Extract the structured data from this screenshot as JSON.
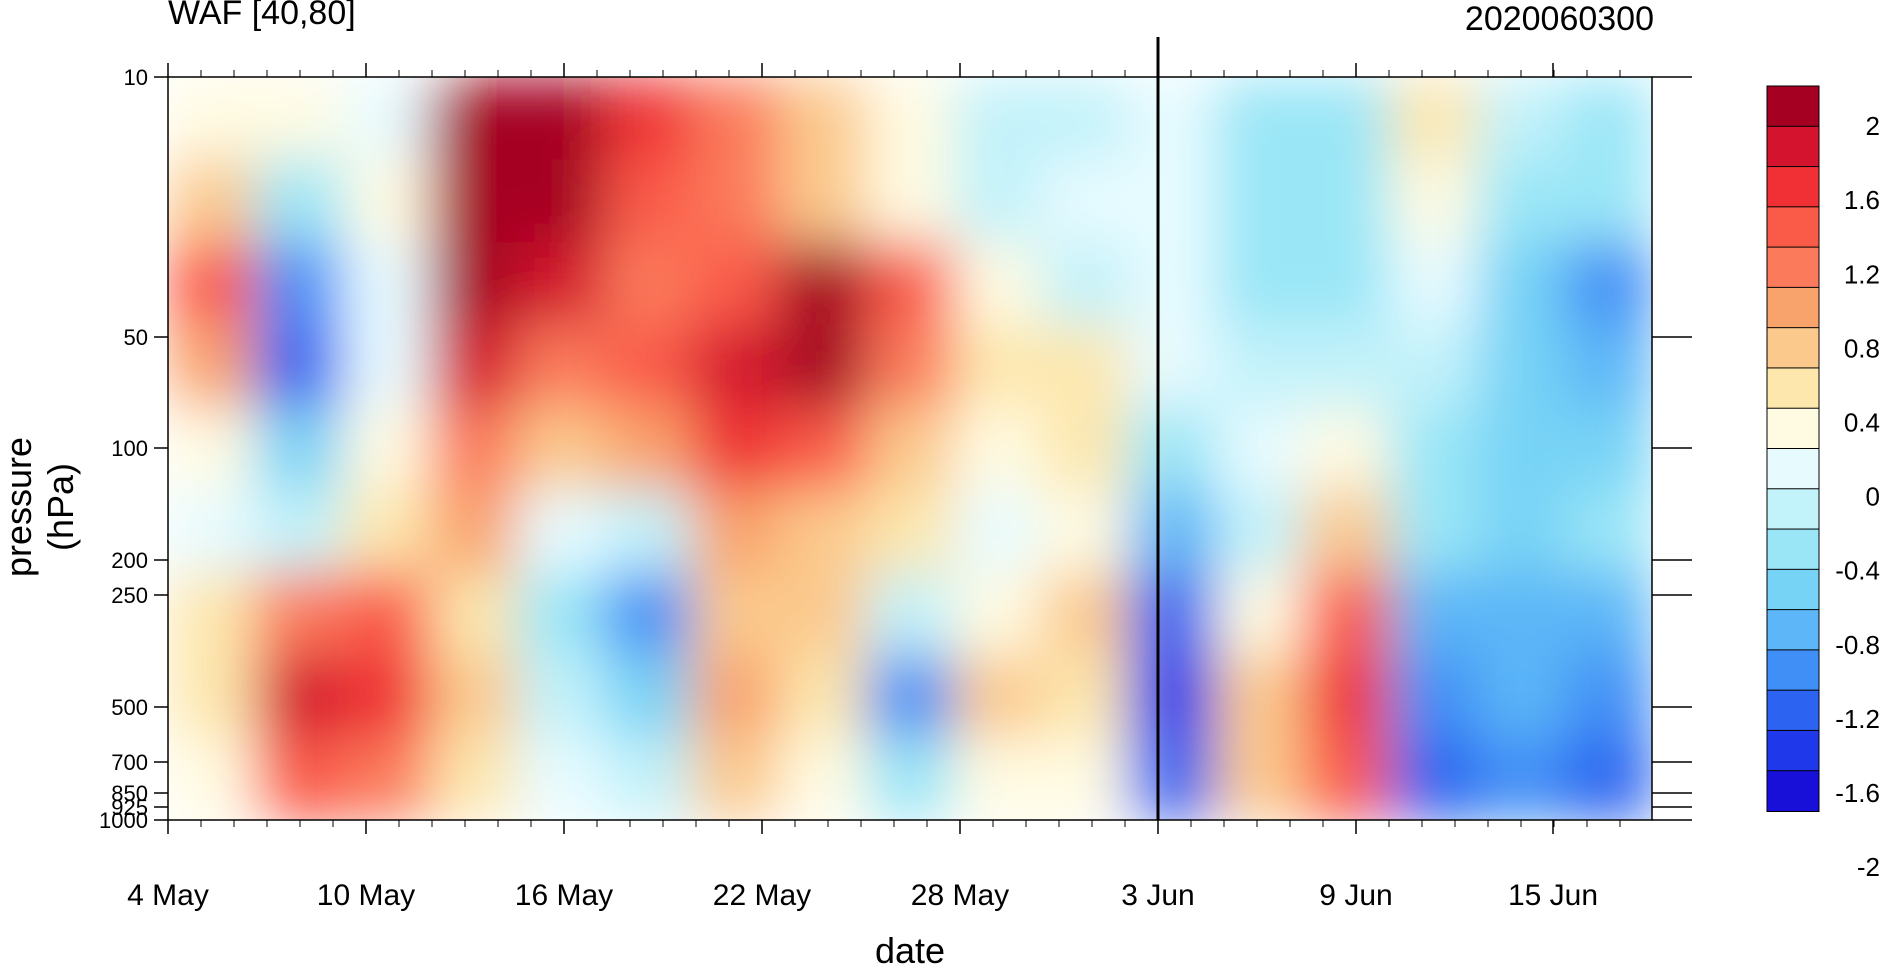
{
  "title_left": "WAF [40,80]",
  "title_right": "2020060300",
  "chart_data": {
    "type": "heatmap",
    "xlabel": "date",
    "ylabel": "pressure (hPa)",
    "x_ticks": [
      "4 May",
      "10 May",
      "16 May",
      "22 May",
      "28 May",
      "3 Jun",
      "9 Jun",
      "15 Jun"
    ],
    "y_ticks": [
      "10",
      "50",
      "100",
      "200",
      "250",
      "500",
      "700",
      "850",
      "925",
      "1000"
    ],
    "colorbar_labels": [
      "2",
      "1.6",
      "1.2",
      "0.8",
      "0.4",
      "0",
      "-0.4",
      "-0.8",
      "-1.2",
      "-1.6",
      "-2"
    ],
    "colorbar_colors": [
      "#a50022",
      "#d4142e",
      "#f03034",
      "#fa5a48",
      "#fb7a5c",
      "#f9a36c",
      "#fbc98c",
      "#fde7ad",
      "#fffbe2",
      "#e7fbff",
      "#c2f2fa",
      "#9ae6f7",
      "#77d3f6",
      "#5cb6f7",
      "#3f8ff6",
      "#2c63f0",
      "#1f38ea",
      "#180fd8"
    ],
    "colorbar_range": [
      -2,
      2
    ],
    "reference_date_line": "3 Jun",
    "grid": false
  }
}
